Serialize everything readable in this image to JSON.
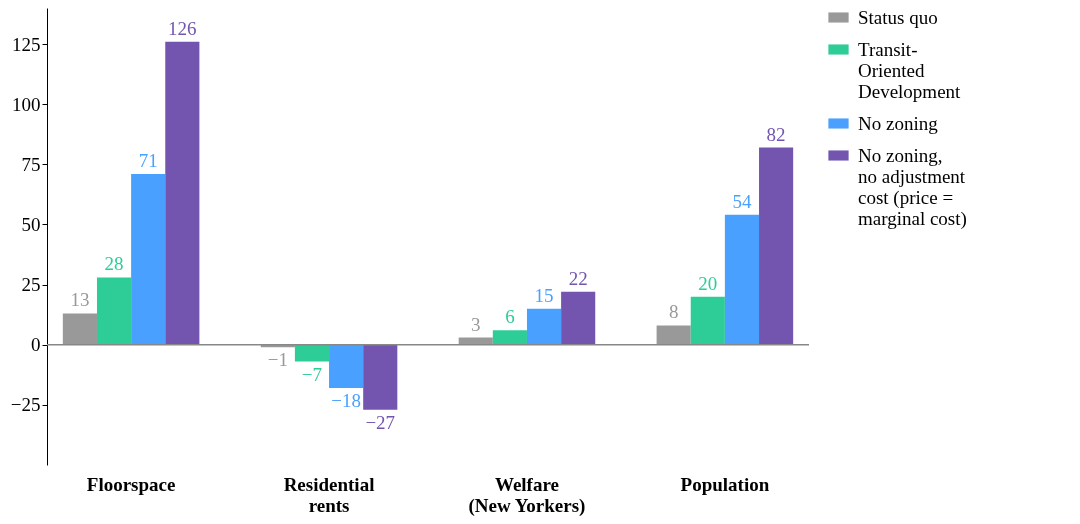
{
  "chart_data": {
    "type": "bar",
    "categories": [
      "Floorspace",
      "Residential\nrents",
      "Welfare\n(New Yorkers)",
      "Population"
    ],
    "series": [
      {
        "name": "Status quo",
        "color": "#999999",
        "values": [
          13,
          -1,
          3,
          8
        ]
      },
      {
        "name": "Transit-\nOriented\nDevelopment",
        "color": "#2ecc96",
        "values": [
          28,
          -7,
          6,
          20
        ]
      },
      {
        "name": "No zoning",
        "color": "#4aa0ff",
        "values": [
          71,
          -18,
          15,
          54
        ]
      },
      {
        "name": "No zoning,\nno adjustment\ncost (price =\nmarginal cost)",
        "color": "#7355b0",
        "values": [
          126,
          -27,
          22,
          82
        ]
      }
    ],
    "ylim": [
      -50,
      140
    ],
    "yticks": [
      -25,
      0,
      25,
      50,
      75,
      100,
      125
    ],
    "ref_lines": [
      {
        "axis": "y",
        "value": 0,
        "color": "#888888"
      }
    ],
    "data_labels": true,
    "grid": false,
    "legend": "top right"
  }
}
